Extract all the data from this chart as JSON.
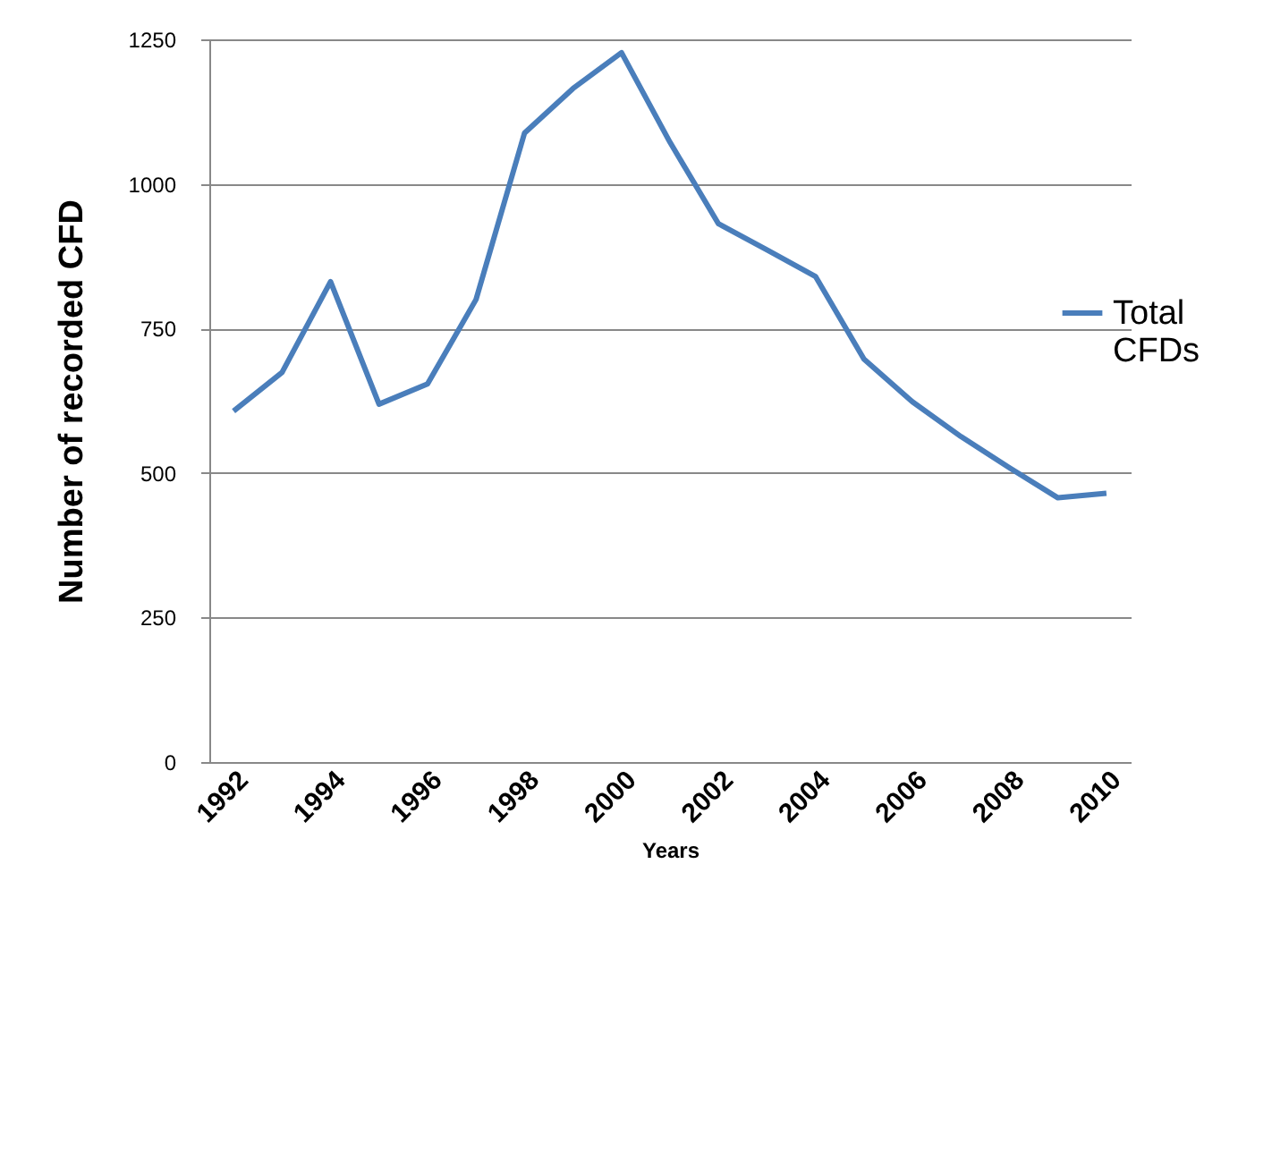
{
  "chart_data": {
    "type": "line",
    "xlabel": "Years",
    "ylabel": "Number of recorded CFD",
    "categories": [
      "1992",
      null,
      "1994",
      null,
      "1996",
      null,
      "1998",
      null,
      "2000",
      null,
      "2002",
      null,
      "2004",
      null,
      "2006",
      null,
      "2008",
      null,
      "2010"
    ],
    "series": [
      {
        "name": "Total CFDs",
        "color": "#4a7ebb",
        "values": [
          607,
          674,
          831,
          619,
          654,
          800,
          1088,
          1165,
          1227,
          1072,
          931,
          886,
          840,
          697,
          623,
          563,
          509,
          457,
          465
        ]
      }
    ],
    "ylim": [
      0,
      1250
    ],
    "yticks": [
      0,
      250,
      500,
      750,
      1000,
      1250
    ],
    "grid": "y",
    "legend": "right",
    "marker": "none",
    "line_style": "solid"
  }
}
